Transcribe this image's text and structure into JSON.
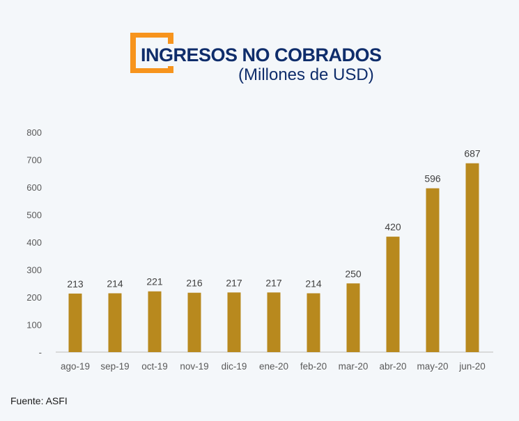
{
  "header": {
    "title": "INGRESOS NO COBRADOS",
    "subtitle": "(Millones de USD)"
  },
  "colors": {
    "bar": "#b8891e",
    "title": "#0f2d6b",
    "bracket": "#f7941d",
    "axis": "#d0d0d0"
  },
  "chart_data": {
    "type": "bar",
    "title": "INGRESOS NO COBRADOS",
    "subtitle": "(Millones de USD)",
    "xlabel": "",
    "ylabel": "",
    "categories": [
      "ago-19",
      "sep-19",
      "oct-19",
      "nov-19",
      "dic-19",
      "ene-20",
      "feb-20",
      "mar-20",
      "abr-20",
      "may-20",
      "jun-20"
    ],
    "values": [
      213,
      214,
      221,
      216,
      217,
      217,
      214,
      250,
      420,
      596,
      687
    ],
    "data_labels": [
      "213",
      "214",
      "221",
      "216",
      "217",
      "217",
      "214",
      "250",
      "420",
      "596",
      "687"
    ],
    "ylim": [
      0,
      800
    ],
    "yticks": [
      0,
      100,
      200,
      300,
      400,
      500,
      600,
      700,
      800
    ],
    "ytick_labels": [
      "-",
      "100",
      "200",
      "300",
      "400",
      "500",
      "600",
      "700",
      "800"
    ],
    "grid": false,
    "legend": "none"
  },
  "footer": {
    "source": "Fuente: ASFI"
  }
}
